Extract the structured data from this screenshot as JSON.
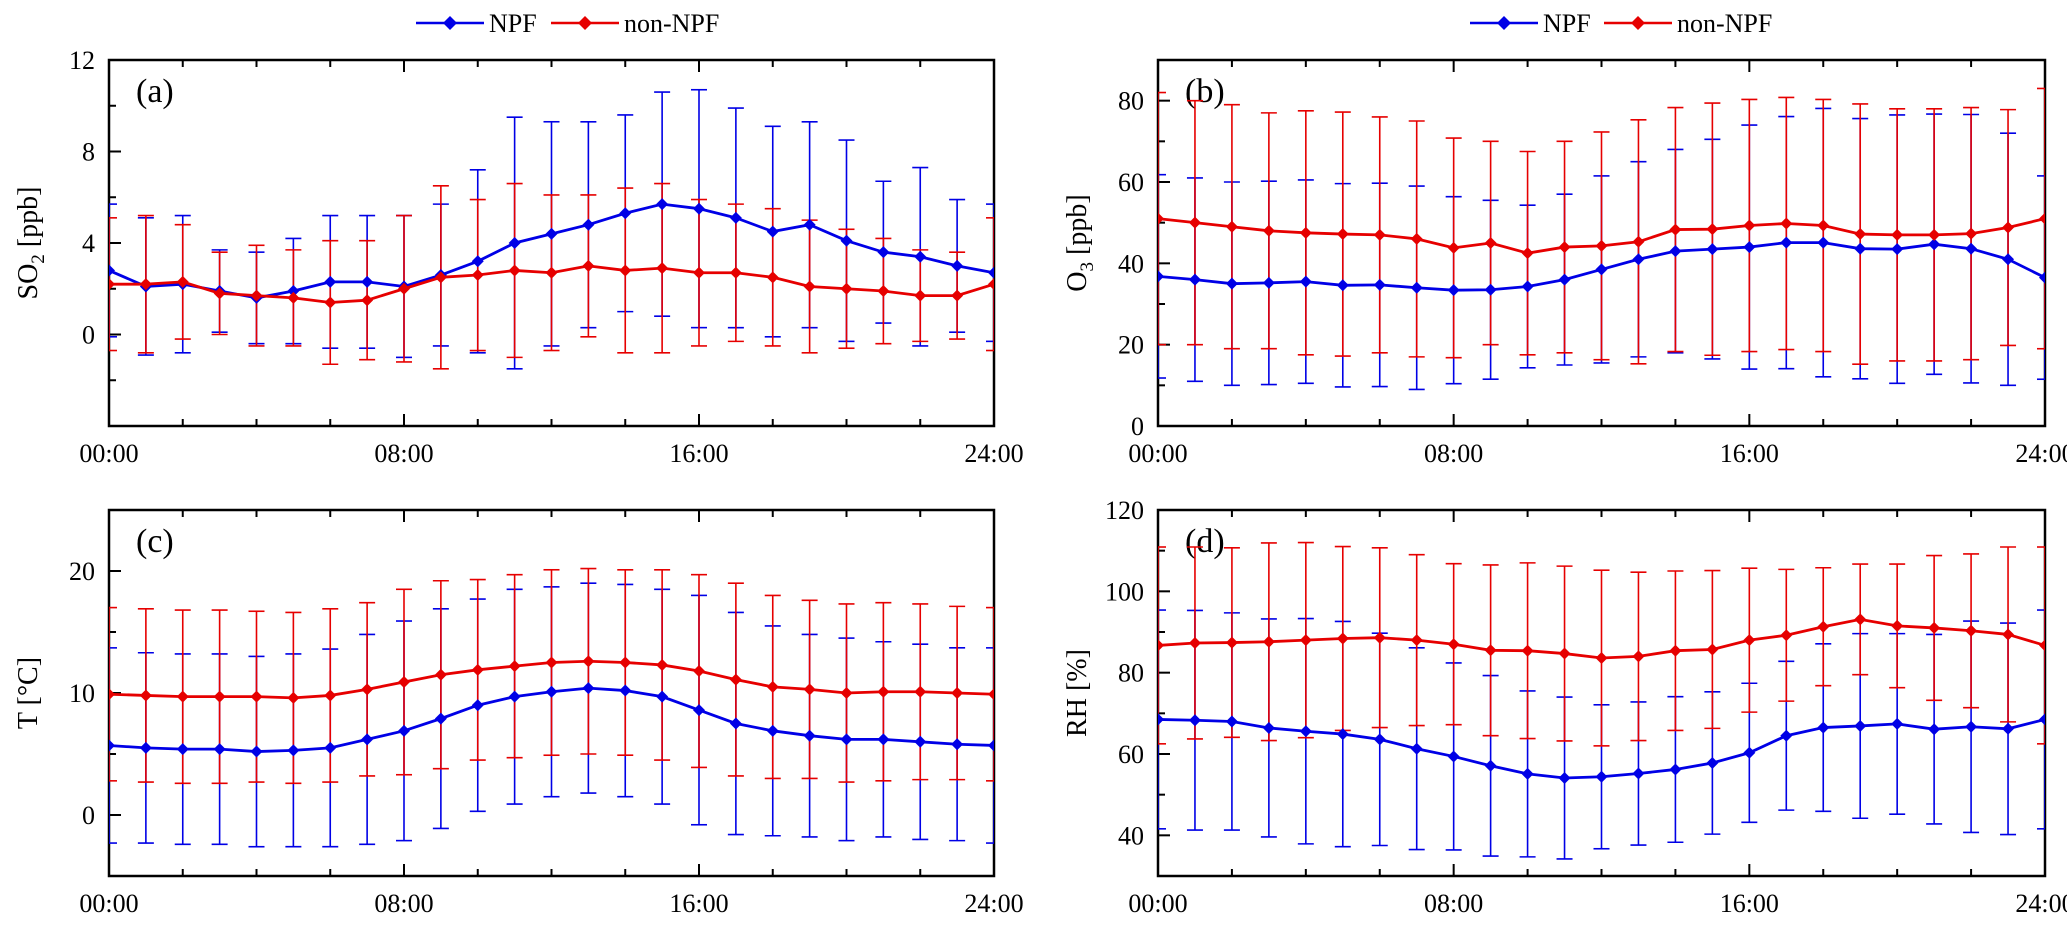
{
  "legend": {
    "npf": "NPF",
    "non_npf": "non-NPF"
  },
  "colors": {
    "npf": "#0000e6",
    "non_npf": "#e60000"
  },
  "chart_data": [
    {
      "type": "line",
      "panel_label": "(a)",
      "ylabel": "SO2 [ppb]",
      "ylabel_main": "SO",
      "ylabel_sub": "2",
      "ylabel_rest": " [ppb]",
      "ylim": [
        -4,
        12
      ],
      "yticks": [
        0,
        4,
        8,
        12
      ],
      "ytick_labels": [
        "0",
        "4",
        "8",
        "12"
      ],
      "xticks": [
        0,
        8,
        16,
        24
      ],
      "xtick_labels": [
        "00:00",
        "08:00",
        "16:00",
        "24:00"
      ],
      "x": [
        0,
        1,
        2,
        3,
        4,
        5,
        6,
        7,
        8,
        9,
        10,
        11,
        12,
        13,
        14,
        15,
        16,
        17,
        18,
        19,
        20,
        21,
        22,
        23,
        24
      ],
      "series": [
        {
          "name": "NPF",
          "values": [
            2.8,
            2.1,
            2.2,
            1.9,
            1.6,
            1.9,
            2.3,
            2.3,
            2.1,
            2.6,
            3.2,
            4.0,
            4.4,
            4.8,
            5.3,
            5.7,
            5.5,
            5.1,
            4.5,
            4.8,
            4.1,
            3.6,
            3.4,
            3.0,
            2.7
          ],
          "error": [
            2.9,
            3.0,
            3.0,
            1.8,
            2.0,
            2.3,
            2.9,
            2.9,
            3.1,
            3.1,
            4.0,
            5.5,
            4.9,
            4.5,
            4.3,
            4.9,
            5.2,
            4.8,
            4.6,
            4.5,
            4.4,
            3.1,
            3.9,
            2.9,
            3.0
          ]
        },
        {
          "name": "non-NPF",
          "values": [
            2.2,
            2.2,
            2.3,
            1.8,
            1.7,
            1.6,
            1.4,
            1.5,
            2.0,
            2.5,
            2.6,
            2.8,
            2.7,
            3.0,
            2.8,
            2.9,
            2.7,
            2.7,
            2.5,
            2.1,
            2.0,
            1.9,
            1.7,
            1.7,
            2.2
          ],
          "error": [
            2.9,
            3.0,
            2.5,
            1.8,
            2.2,
            2.1,
            2.7,
            2.6,
            3.2,
            4.0,
            3.3,
            3.8,
            3.4,
            3.1,
            3.6,
            3.7,
            3.2,
            3.0,
            3.0,
            2.9,
            2.6,
            2.3,
            2.0,
            1.9,
            2.9
          ]
        }
      ]
    },
    {
      "type": "line",
      "panel_label": "(b)",
      "ylabel": "O3 [ppb]",
      "ylabel_main": "O",
      "ylabel_sub": "3",
      "ylabel_rest": " [ppb]",
      "ylim": [
        0,
        90
      ],
      "yticks": [
        0,
        20,
        40,
        60,
        80
      ],
      "ytick_labels": [
        "0",
        "20",
        "40",
        "60",
        "80"
      ],
      "xticks": [
        0,
        8,
        16,
        24
      ],
      "xtick_labels": [
        "00:00",
        "08:00",
        "16:00",
        "24:00"
      ],
      "x": [
        0,
        1,
        2,
        3,
        4,
        5,
        6,
        7,
        8,
        9,
        10,
        11,
        12,
        13,
        14,
        15,
        16,
        17,
        18,
        19,
        20,
        21,
        22,
        23,
        24
      ],
      "series": [
        {
          "name": "NPF",
          "values": [
            36.8,
            36.0,
            35.0,
            35.2,
            35.5,
            34.6,
            34.7,
            34.0,
            33.4,
            33.5,
            34.3,
            36.0,
            38.5,
            41.0,
            43.0,
            43.5,
            44.0,
            45.1,
            45.1,
            43.6,
            43.5,
            44.7,
            43.6,
            41.0,
            36.5
          ],
          "error": [
            25,
            25,
            25,
            25,
            25,
            25,
            25,
            25,
            23,
            22,
            20,
            21,
            23,
            24,
            25,
            27,
            30,
            31,
            33,
            32,
            33,
            32,
            33,
            31,
            25
          ]
        },
        {
          "name": "non-NPF",
          "values": [
            51.0,
            50.0,
            49.0,
            48.0,
            47.5,
            47.2,
            47.0,
            46.0,
            43.8,
            45.0,
            42.5,
            44.0,
            44.3,
            45.3,
            48.3,
            48.4,
            49.3,
            49.8,
            49.3,
            47.2,
            47.0,
            47.0,
            47.3,
            48.8,
            51.0
          ],
          "error": [
            31,
            30,
            30,
            29,
            30,
            30,
            29,
            29,
            27,
            25,
            25,
            26,
            28,
            30,
            30,
            31,
            31,
            31,
            31,
            32,
            31,
            31,
            31,
            29,
            32
          ]
        }
      ]
    },
    {
      "type": "line",
      "panel_label": "(c)",
      "ylabel": "T [°C]",
      "ylim": [
        -5,
        25
      ],
      "yticks": [
        0,
        10,
        20
      ],
      "ytick_labels": [
        "0",
        "10",
        "20"
      ],
      "xticks": [
        0,
        8,
        16,
        24
      ],
      "xtick_labels": [
        "00:00",
        "08:00",
        "16:00",
        "24:00"
      ],
      "x": [
        0,
        1,
        2,
        3,
        4,
        5,
        6,
        7,
        8,
        9,
        10,
        11,
        12,
        13,
        14,
        15,
        16,
        17,
        18,
        19,
        20,
        21,
        22,
        23,
        24
      ],
      "series": [
        {
          "name": "NPF",
          "values": [
            5.7,
            5.5,
            5.4,
            5.4,
            5.2,
            5.3,
            5.5,
            6.2,
            6.9,
            7.9,
            9.0,
            9.7,
            10.1,
            10.4,
            10.2,
            9.7,
            8.6,
            7.5,
            6.9,
            6.5,
            6.2,
            6.2,
            6.0,
            5.8,
            5.7
          ],
          "error": [
            8.0,
            7.8,
            7.8,
            7.8,
            7.8,
            7.9,
            8.1,
            8.6,
            9.0,
            9.0,
            8.7,
            8.8,
            8.6,
            8.6,
            8.7,
            8.8,
            9.4,
            9.1,
            8.6,
            8.3,
            8.3,
            8.0,
            8.0,
            7.9,
            8.0
          ]
        },
        {
          "name": "non-NPF",
          "values": [
            9.9,
            9.8,
            9.7,
            9.7,
            9.7,
            9.6,
            9.8,
            10.3,
            10.9,
            11.5,
            11.9,
            12.2,
            12.5,
            12.6,
            12.5,
            12.3,
            11.8,
            11.1,
            10.5,
            10.3,
            10.0,
            10.1,
            10.1,
            10.0,
            9.9
          ],
          "error": [
            7.1,
            7.1,
            7.1,
            7.1,
            7.0,
            7.0,
            7.1,
            7.1,
            7.6,
            7.7,
            7.4,
            7.5,
            7.6,
            7.6,
            7.6,
            7.8,
            7.9,
            7.9,
            7.5,
            7.3,
            7.3,
            7.3,
            7.2,
            7.1,
            7.1
          ]
        }
      ]
    },
    {
      "type": "line",
      "panel_label": "(d)",
      "ylabel": "RH [%]",
      "ylim": [
        30,
        120
      ],
      "yticks": [
        40,
        60,
        80,
        100,
        120
      ],
      "ytick_labels": [
        "40",
        "60",
        "80",
        "100",
        "120"
      ],
      "xticks": [
        0,
        8,
        16,
        24
      ],
      "xtick_labels": [
        "00:00",
        "08:00",
        "16:00",
        "24:00"
      ],
      "x": [
        0,
        1,
        2,
        3,
        4,
        5,
        6,
        7,
        8,
        9,
        10,
        11,
        12,
        13,
        14,
        15,
        16,
        17,
        18,
        19,
        20,
        21,
        22,
        23,
        24
      ],
      "series": [
        {
          "name": "NPF",
          "values": [
            68.5,
            68.3,
            68.0,
            66.4,
            65.6,
            64.9,
            63.6,
            61.3,
            59.4,
            57.1,
            55.1,
            54.1,
            54.4,
            55.2,
            56.2,
            57.8,
            60.3,
            64.5,
            66.5,
            66.9,
            67.4,
            66.1,
            66.7,
            66.2,
            68.5
          ],
          "error": [
            26.9,
            27.0,
            26.7,
            26.8,
            27.7,
            27.7,
            26.1,
            24.8,
            23.0,
            22.2,
            20.4,
            19.9,
            17.7,
            17.6,
            17.9,
            17.5,
            17.1,
            18.3,
            20.6,
            22.7,
            22.2,
            23.3,
            26.0,
            26.0,
            26.9
          ]
        },
        {
          "name": "non-NPF",
          "values": [
            86.7,
            87.3,
            87.4,
            87.6,
            88.0,
            88.4,
            88.6,
            88.0,
            87.0,
            85.5,
            85.4,
            84.7,
            83.6,
            84.0,
            85.4,
            85.7,
            88.0,
            89.2,
            91.3,
            93.1,
            91.5,
            91.0,
            90.3,
            89.4,
            86.7
          ],
          "error": [
            24.2,
            23.6,
            23.3,
            24.3,
            24.0,
            22.6,
            22.1,
            21.0,
            19.8,
            21.0,
            21.6,
            21.5,
            21.6,
            20.7,
            19.6,
            19.4,
            17.7,
            16.2,
            14.5,
            13.6,
            15.2,
            17.8,
            18.9,
            21.5,
            24.2
          ]
        }
      ]
    }
  ]
}
